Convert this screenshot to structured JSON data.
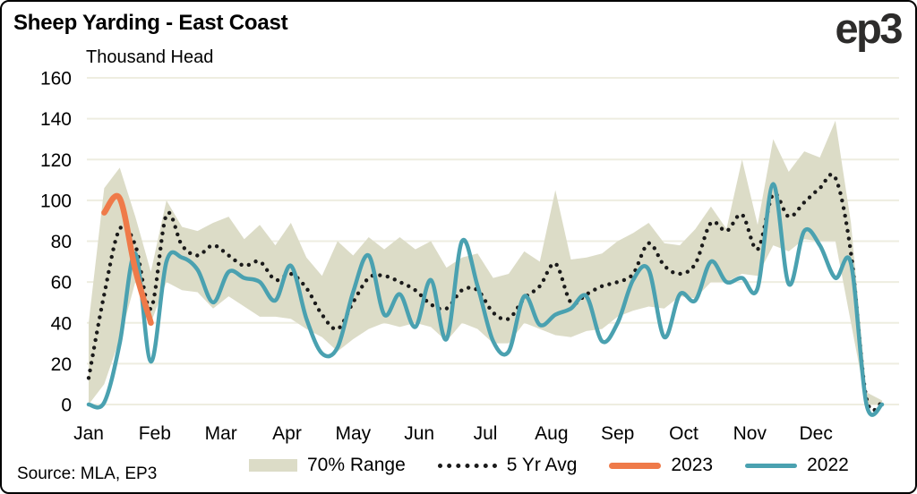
{
  "frame": {
    "title": "Sheep Yarding - East Coast",
    "subtitle": "Thousand Head",
    "logo_text": "ep3",
    "source": "Source: MLA, EP3"
  },
  "legend": {
    "items": [
      {
        "label": "70% Range",
        "type": "band-swatch"
      },
      {
        "label": "5 Yr Avg",
        "type": "dotted-line"
      },
      {
        "label": "2023",
        "type": "solid-line"
      },
      {
        "label": "2022",
        "type": "solid-line"
      }
    ]
  },
  "colors": {
    "band": "#dcdcc7",
    "avg_dotted": "#1a1a1a",
    "line_2023": "#ef7a49",
    "line_2022": "#4aa1b0",
    "grid": "#eeede0",
    "text": "#000000",
    "logo": "#2d2c2b"
  },
  "chart_data": {
    "type": "line",
    "title": "Sheep Yarding - East Coast",
    "ylabel": "Thousand Head",
    "xlabel": "",
    "x_unit": "weekly (52 points, Jan-Dec)",
    "x_tick_labels": [
      "Jan",
      "Feb",
      "Mar",
      "Apr",
      "May",
      "Jun",
      "Jul",
      "Aug",
      "Sep",
      "Oct",
      "Nov",
      "Dec"
    ],
    "ylim": [
      0,
      160
    ],
    "yticks": [
      0,
      20,
      40,
      60,
      80,
      100,
      120,
      140,
      160
    ],
    "grid": "horizontal",
    "legend_position": "bottom-center",
    "band": {
      "name": "70% Range",
      "upper": [
        40,
        106,
        116,
        92,
        65,
        100,
        87,
        85,
        89,
        92,
        81,
        88,
        78,
        89,
        72,
        63,
        80,
        73,
        82,
        76,
        82,
        76,
        80,
        67,
        72,
        74,
        62,
        64,
        75,
        70,
        105,
        71,
        72,
        74,
        80,
        84,
        89,
        79,
        78,
        86,
        97,
        86,
        120,
        88,
        130,
        114,
        124,
        121,
        139,
        89,
        6,
        2
      ],
      "lower": [
        0,
        10,
        32,
        60,
        40,
        60,
        56,
        55,
        47,
        53,
        48,
        43,
        43,
        42,
        37,
        33,
        26,
        32,
        37,
        40,
        38,
        40,
        38,
        31,
        40,
        37,
        30,
        30,
        40,
        37,
        34,
        33,
        36,
        37,
        43,
        46,
        48,
        47,
        53,
        52,
        60,
        60,
        64,
        63,
        78,
        75,
        81,
        80,
        80,
        40,
        0,
        0
      ]
    },
    "series": [
      {
        "name": "5 Yr Avg",
        "style": "dotted",
        "color_key": "avg_dotted",
        "values": [
          13,
          54,
          86,
          78,
          47,
          93,
          78,
          73,
          78,
          73,
          68,
          70,
          61,
          64,
          57,
          44,
          37,
          50,
          62,
          63,
          60,
          56,
          49,
          47,
          56,
          56,
          45,
          42,
          52,
          58,
          69,
          50,
          54,
          58,
          60,
          64,
          79,
          68,
          64,
          69,
          89,
          85,
          93,
          76,
          103,
          92,
          99,
          106,
          111,
          74,
          3,
          1
        ]
      },
      {
        "name": "2022",
        "style": "solid",
        "color_key": "line_2022",
        "values": [
          0,
          1,
          30,
          74,
          21,
          70,
          72,
          66,
          50,
          65,
          62,
          60,
          51,
          68,
          42,
          25,
          28,
          55,
          73,
          44,
          54,
          38,
          61,
          32,
          80,
          58,
          31,
          26,
          53,
          39,
          44,
          47,
          53,
          31,
          40,
          61,
          66,
          33,
          54,
          51,
          70,
          60,
          62,
          57,
          108,
          59,
          85,
          78,
          62,
          69,
          0,
          0
        ]
      },
      {
        "name": "2023",
        "style": "solid",
        "color_key": "line_2023",
        "values": [
          null,
          94,
          101,
          66,
          40,
          null,
          null,
          null,
          null,
          null,
          null,
          null,
          null,
          null,
          null,
          null,
          null,
          null,
          null,
          null,
          null,
          null,
          null,
          null,
          null,
          null,
          null,
          null,
          null,
          null,
          null,
          null,
          null,
          null,
          null,
          null,
          null,
          null,
          null,
          null,
          null,
          null,
          null,
          null,
          null,
          null,
          null,
          null,
          null,
          null,
          null,
          null
        ]
      }
    ]
  }
}
